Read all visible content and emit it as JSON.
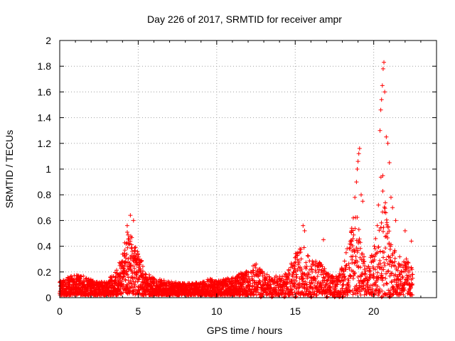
{
  "chart_data": {
    "type": "scatter",
    "title": "Day 226 of 2017, SRMTID for receiver ampr",
    "xlabel": "GPS time / hours",
    "ylabel": "SRMTID / TECUs",
    "xlim": [
      0,
      24
    ],
    "ylim": [
      0,
      2
    ],
    "xticks": [
      0,
      5,
      10,
      15,
      20
    ],
    "xtick_labels": [
      "0",
      "5",
      "10",
      "15",
      "20"
    ],
    "yticks": [
      0,
      0.2,
      0.4,
      0.6,
      0.8,
      1,
      1.2,
      1.4,
      1.6,
      1.8,
      2
    ],
    "ytick_labels": [
      "0",
      "0.2",
      "0.4",
      "0.6",
      "0.8",
      "1",
      "1.2",
      "1.4",
      "1.6",
      "1.8",
      "2"
    ],
    "grid": true,
    "marker": "+",
    "marker_color": "#ff0000",
    "series": [
      {
        "name": "SRMTID",
        "envelope_x": [
          0,
          0.5,
          1,
          1.5,
          2,
          2.5,
          3,
          3.5,
          4,
          4.3,
          4.6,
          5,
          5.5,
          6,
          7,
          8,
          9,
          9.5,
          10,
          11,
          12,
          12.5,
          13,
          13.5,
          14,
          14.5,
          15,
          15.5,
          16,
          16.5,
          17,
          17.5,
          18,
          18.5,
          18.8,
          19.2,
          19.5,
          20,
          20.3,
          20.5,
          20.8,
          21,
          21.5,
          22,
          22.5
        ],
        "envelope_y": [
          0.11,
          0.14,
          0.16,
          0.15,
          0.12,
          0.1,
          0.11,
          0.18,
          0.32,
          0.52,
          0.45,
          0.33,
          0.18,
          0.13,
          0.11,
          0.09,
          0.1,
          0.13,
          0.11,
          0.14,
          0.2,
          0.25,
          0.18,
          0.14,
          0.16,
          0.18,
          0.32,
          0.4,
          0.26,
          0.3,
          0.18,
          0.14,
          0.22,
          0.5,
          0.72,
          0.45,
          0.22,
          0.35,
          0.7,
          1.1,
          0.7,
          0.5,
          0.3,
          0.3,
          0.22
        ],
        "peak_points": [
          [
            4.5,
            0.64
          ],
          [
            4.7,
            0.6
          ],
          [
            4.3,
            0.56
          ],
          [
            15.5,
            0.56
          ],
          [
            15.6,
            0.52
          ],
          [
            16.8,
            0.45
          ],
          [
            18.6,
            0.54
          ],
          [
            18.7,
            0.62
          ],
          [
            18.8,
            0.78
          ],
          [
            18.9,
            0.9
          ],
          [
            18.95,
            1.0
          ],
          [
            19.0,
            1.06
          ],
          [
            19.05,
            1.12
          ],
          [
            19.1,
            1.16
          ],
          [
            19.2,
            0.8
          ],
          [
            19.3,
            0.75
          ],
          [
            20.3,
            0.72
          ],
          [
            20.4,
            1.3
          ],
          [
            20.45,
            1.46
          ],
          [
            20.5,
            1.54
          ],
          [
            20.55,
            1.65
          ],
          [
            20.6,
            1.78
          ],
          [
            20.65,
            1.83
          ],
          [
            20.7,
            1.6
          ],
          [
            20.8,
            1.25
          ],
          [
            20.9,
            1.2
          ],
          [
            21.0,
            1.05
          ],
          [
            21.1,
            0.78
          ],
          [
            21.2,
            0.7
          ],
          [
            21.4,
            0.6
          ],
          [
            22.0,
            0.52
          ],
          [
            22.4,
            0.44
          ]
        ],
        "near_zero_x": [
          12.8,
          13.5,
          14.3,
          15.0,
          16.0,
          17.0,
          17.5,
          17.8,
          18.0,
          20.5,
          21.0
        ]
      }
    ]
  }
}
